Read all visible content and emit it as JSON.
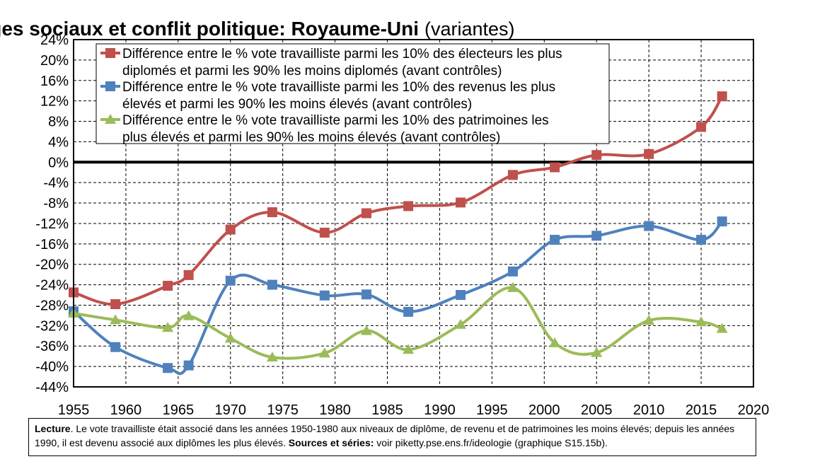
{
  "chart_data": {
    "type": "line",
    "title": "Clivages sociaux et conflit politique: Royaume-Uni",
    "subtitle": "(variantes)",
    "xlim": [
      1955,
      2020
    ],
    "ylim": [
      -44,
      24
    ],
    "x_ticks": [
      "1955",
      "1960",
      "1965",
      "1970",
      "1975",
      "1980",
      "1985",
      "1990",
      "1995",
      "2000",
      "2005",
      "2010",
      "2015",
      "2020"
    ],
    "y_ticks": [
      "24%",
      "20%",
      "16%",
      "12%",
      "8%",
      "4%",
      "0%",
      "-4%",
      "-8%",
      "-12%",
      "-16%",
      "-20%",
      "-24%",
      "-28%",
      "-32%",
      "-36%",
      "-40%",
      "-44%"
    ],
    "grid": true,
    "legend_position": "top-left",
    "series": [
      {
        "name": "Différence entre le % vote travailliste parmi les 10% des électeurs les plus diplomés et parmi les 90% les moins diplomés (avant contrôles)",
        "legend_line1": "Différence entre le % vote travailliste parmi les 10% des électeurs les plus",
        "legend_line2": "diplomés et parmi les 90% les moins diplomés (avant contrôles)",
        "color": "#c0504d",
        "marker": "square",
        "x": [
          1955,
          1959,
          1964,
          1966,
          1970,
          1974,
          1979,
          1983,
          1987,
          1992,
          1997,
          2001,
          2005,
          2010,
          2015,
          2017
        ],
        "y": [
          -25.5,
          -27.8,
          -24.2,
          -22.1,
          -13.2,
          -9.8,
          -13.8,
          -10.0,
          -8.6,
          -7.9,
          -2.5,
          -1.0,
          1.4,
          1.6,
          6.9,
          12.9
        ]
      },
      {
        "name": "Différence entre le % vote travailliste parmi les 10% des revenus les plus élevés et parmi les 90% les moins élevés (avant contrôles)",
        "legend_line1": "Différence entre le % vote travailliste parmi les 10% des revenus les plus",
        "legend_line2": "élevés et parmi les 90% les moins élevés (avant contrôles)",
        "color": "#4f81bd",
        "marker": "square",
        "x": [
          1955,
          1959,
          1964,
          1966,
          1970,
          1974,
          1979,
          1983,
          1987,
          1992,
          1997,
          2001,
          2005,
          2010,
          2015,
          2017
        ],
        "y": [
          -29.2,
          -36.2,
          -40.3,
          -39.8,
          -23.2,
          -24.0,
          -26.1,
          -25.9,
          -29.3,
          -26.0,
          -21.4,
          -15.2,
          -14.4,
          -12.5,
          -15.2,
          -11.6
        ]
      },
      {
        "name": "Différence entre le % vote travailliste parmi les 10% des patrimoines les plus élevés et parmi les 90% les moins élevés (avant contrôles)",
        "legend_line1": "Différence entre le % vote travailliste parmi les 10% des patrimoines les",
        "legend_line2": "plus élevés et parmi les 90% les moins élevés (avant contrôles)",
        "color": "#9bbb59",
        "marker": "triangle",
        "x": [
          1955,
          1959,
          1964,
          1966,
          1970,
          1974,
          1979,
          1983,
          1987,
          1992,
          1997,
          2001,
          2005,
          2010,
          2015,
          2017
        ],
        "y": [
          -29.6,
          -30.9,
          -32.4,
          -30.1,
          -34.5,
          -38.2,
          -37.4,
          -33.0,
          -36.7,
          -31.8,
          -24.6,
          -35.4,
          -37.3,
          -31.0,
          -31.3,
          -32.6
        ]
      }
    ]
  },
  "note": {
    "lecture_label": "Lecture",
    "lecture_text": ". Le vote travailliste était associé dans les années 1950-1980 aux niveaux de diplôme, de revenu et de patrimoines les moins élevés; depuis les années 1990, il est devenu associé aux diplômes les plus élevés. ",
    "sources_label": "Sources et séries:",
    "sources_text": " voir piketty.pse.ens.fr/ideologie (graphique S15.15b)."
  }
}
